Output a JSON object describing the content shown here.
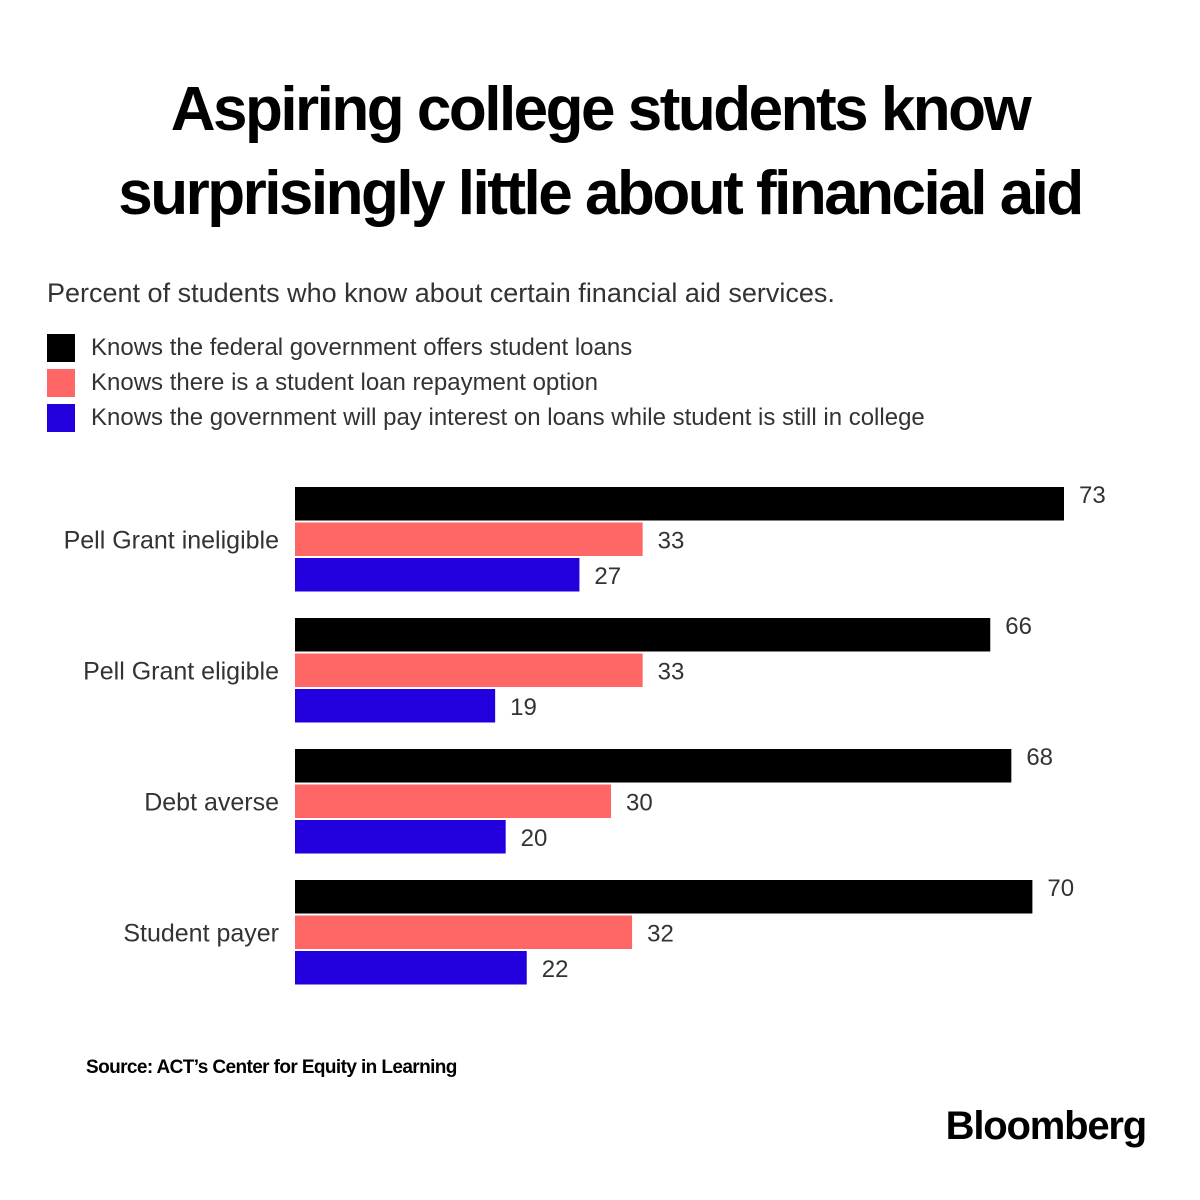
{
  "chart_data": {
    "type": "bar",
    "orientation": "horizontal",
    "title": "Aspiring college students know surprisingly little about financial aid",
    "title_lines": [
      "Aspiring college students know",
      "surprisingly little about financial aid"
    ],
    "subtitle": "Percent of students who know about certain financial aid services.",
    "categories": [
      "Pell Grant ineligible",
      "Pell Grant eligible",
      "Debt averse",
      "Student payer"
    ],
    "series": [
      {
        "name": "Knows the federal government offers student loans",
        "color": "#000000",
        "values": [
          73,
          66,
          68,
          70
        ]
      },
      {
        "name": "Knows there is a student loan repayment option",
        "color": "#ff6666",
        "values": [
          33,
          33,
          30,
          32
        ]
      },
      {
        "name": "Knows the government will pay interest on loans while student is still in college",
        "color": "#2200dd",
        "values": [
          27,
          19,
          20,
          22
        ]
      }
    ],
    "xlim": [
      0,
      73
    ],
    "grid": false,
    "legend_position": "top-left",
    "data_labels": true,
    "xlabel": "",
    "ylabel": ""
  },
  "footer": {
    "source": "Source: ACT’s Center for Equity in Learning",
    "brand": "Bloomberg"
  }
}
